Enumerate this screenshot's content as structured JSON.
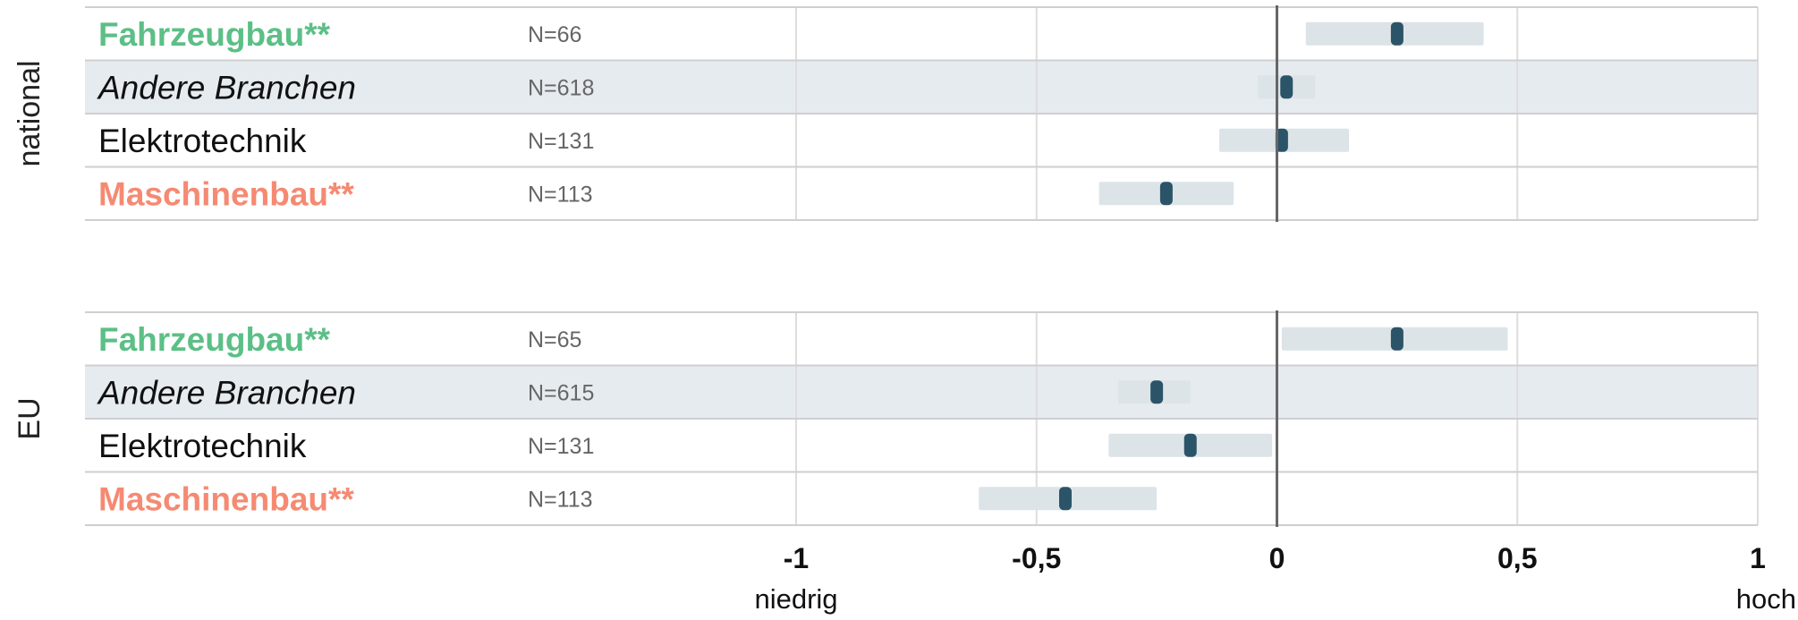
{
  "chart_data": {
    "type": "interval",
    "x_range": [
      -1,
      1
    ],
    "x_ticks": [
      {
        "value": -1,
        "label": "-1"
      },
      {
        "value": -0.5,
        "label": "-0,5"
      },
      {
        "value": 0,
        "label": "0"
      },
      {
        "value": 0.5,
        "label": "0,5"
      },
      {
        "value": 1,
        "label": "1"
      }
    ],
    "x_end_labels": {
      "low": "niedrig",
      "high": "hoch"
    },
    "colors": {
      "green": "#5cbf86",
      "orange": "#f58a72",
      "marker": "#2c5468",
      "interval": "#dce4e8",
      "highlight_band": "#e6ebf0",
      "grid": "#dddddd",
      "zero_line": "#666666"
    },
    "panels": [
      {
        "group": "national",
        "rows": [
          {
            "label": "Fahrzeugbau**",
            "style": "green",
            "n": "N=66",
            "estimate": 0.25,
            "low": 0.06,
            "high": 0.43
          },
          {
            "label": "Andere Branchen",
            "style": "italic-highlight",
            "n": "N=618",
            "estimate": 0.02,
            "low": -0.04,
            "high": 0.08
          },
          {
            "label": "Elektrotechnik",
            "style": "plain",
            "n": "N=131",
            "estimate": 0.01,
            "low": -0.12,
            "high": 0.15
          },
          {
            "label": "Maschinenbau**",
            "style": "orange",
            "n": "N=113",
            "estimate": -0.23,
            "low": -0.37,
            "high": -0.09
          }
        ]
      },
      {
        "group": "EU",
        "rows": [
          {
            "label": "Fahrzeugbau**",
            "style": "green",
            "n": "N=65",
            "estimate": 0.25,
            "low": 0.01,
            "high": 0.48
          },
          {
            "label": "Andere Branchen",
            "style": "italic-highlight",
            "n": "N=615",
            "estimate": -0.25,
            "low": -0.33,
            "high": -0.18
          },
          {
            "label": "Elektrotechnik",
            "style": "plain",
            "n": "N=131",
            "estimate": -0.18,
            "low": -0.35,
            "high": -0.01
          },
          {
            "label": "Maschinenbau**",
            "style": "orange",
            "n": "N=113",
            "estimate": -0.44,
            "low": -0.62,
            "high": -0.25
          }
        ]
      }
    ]
  }
}
